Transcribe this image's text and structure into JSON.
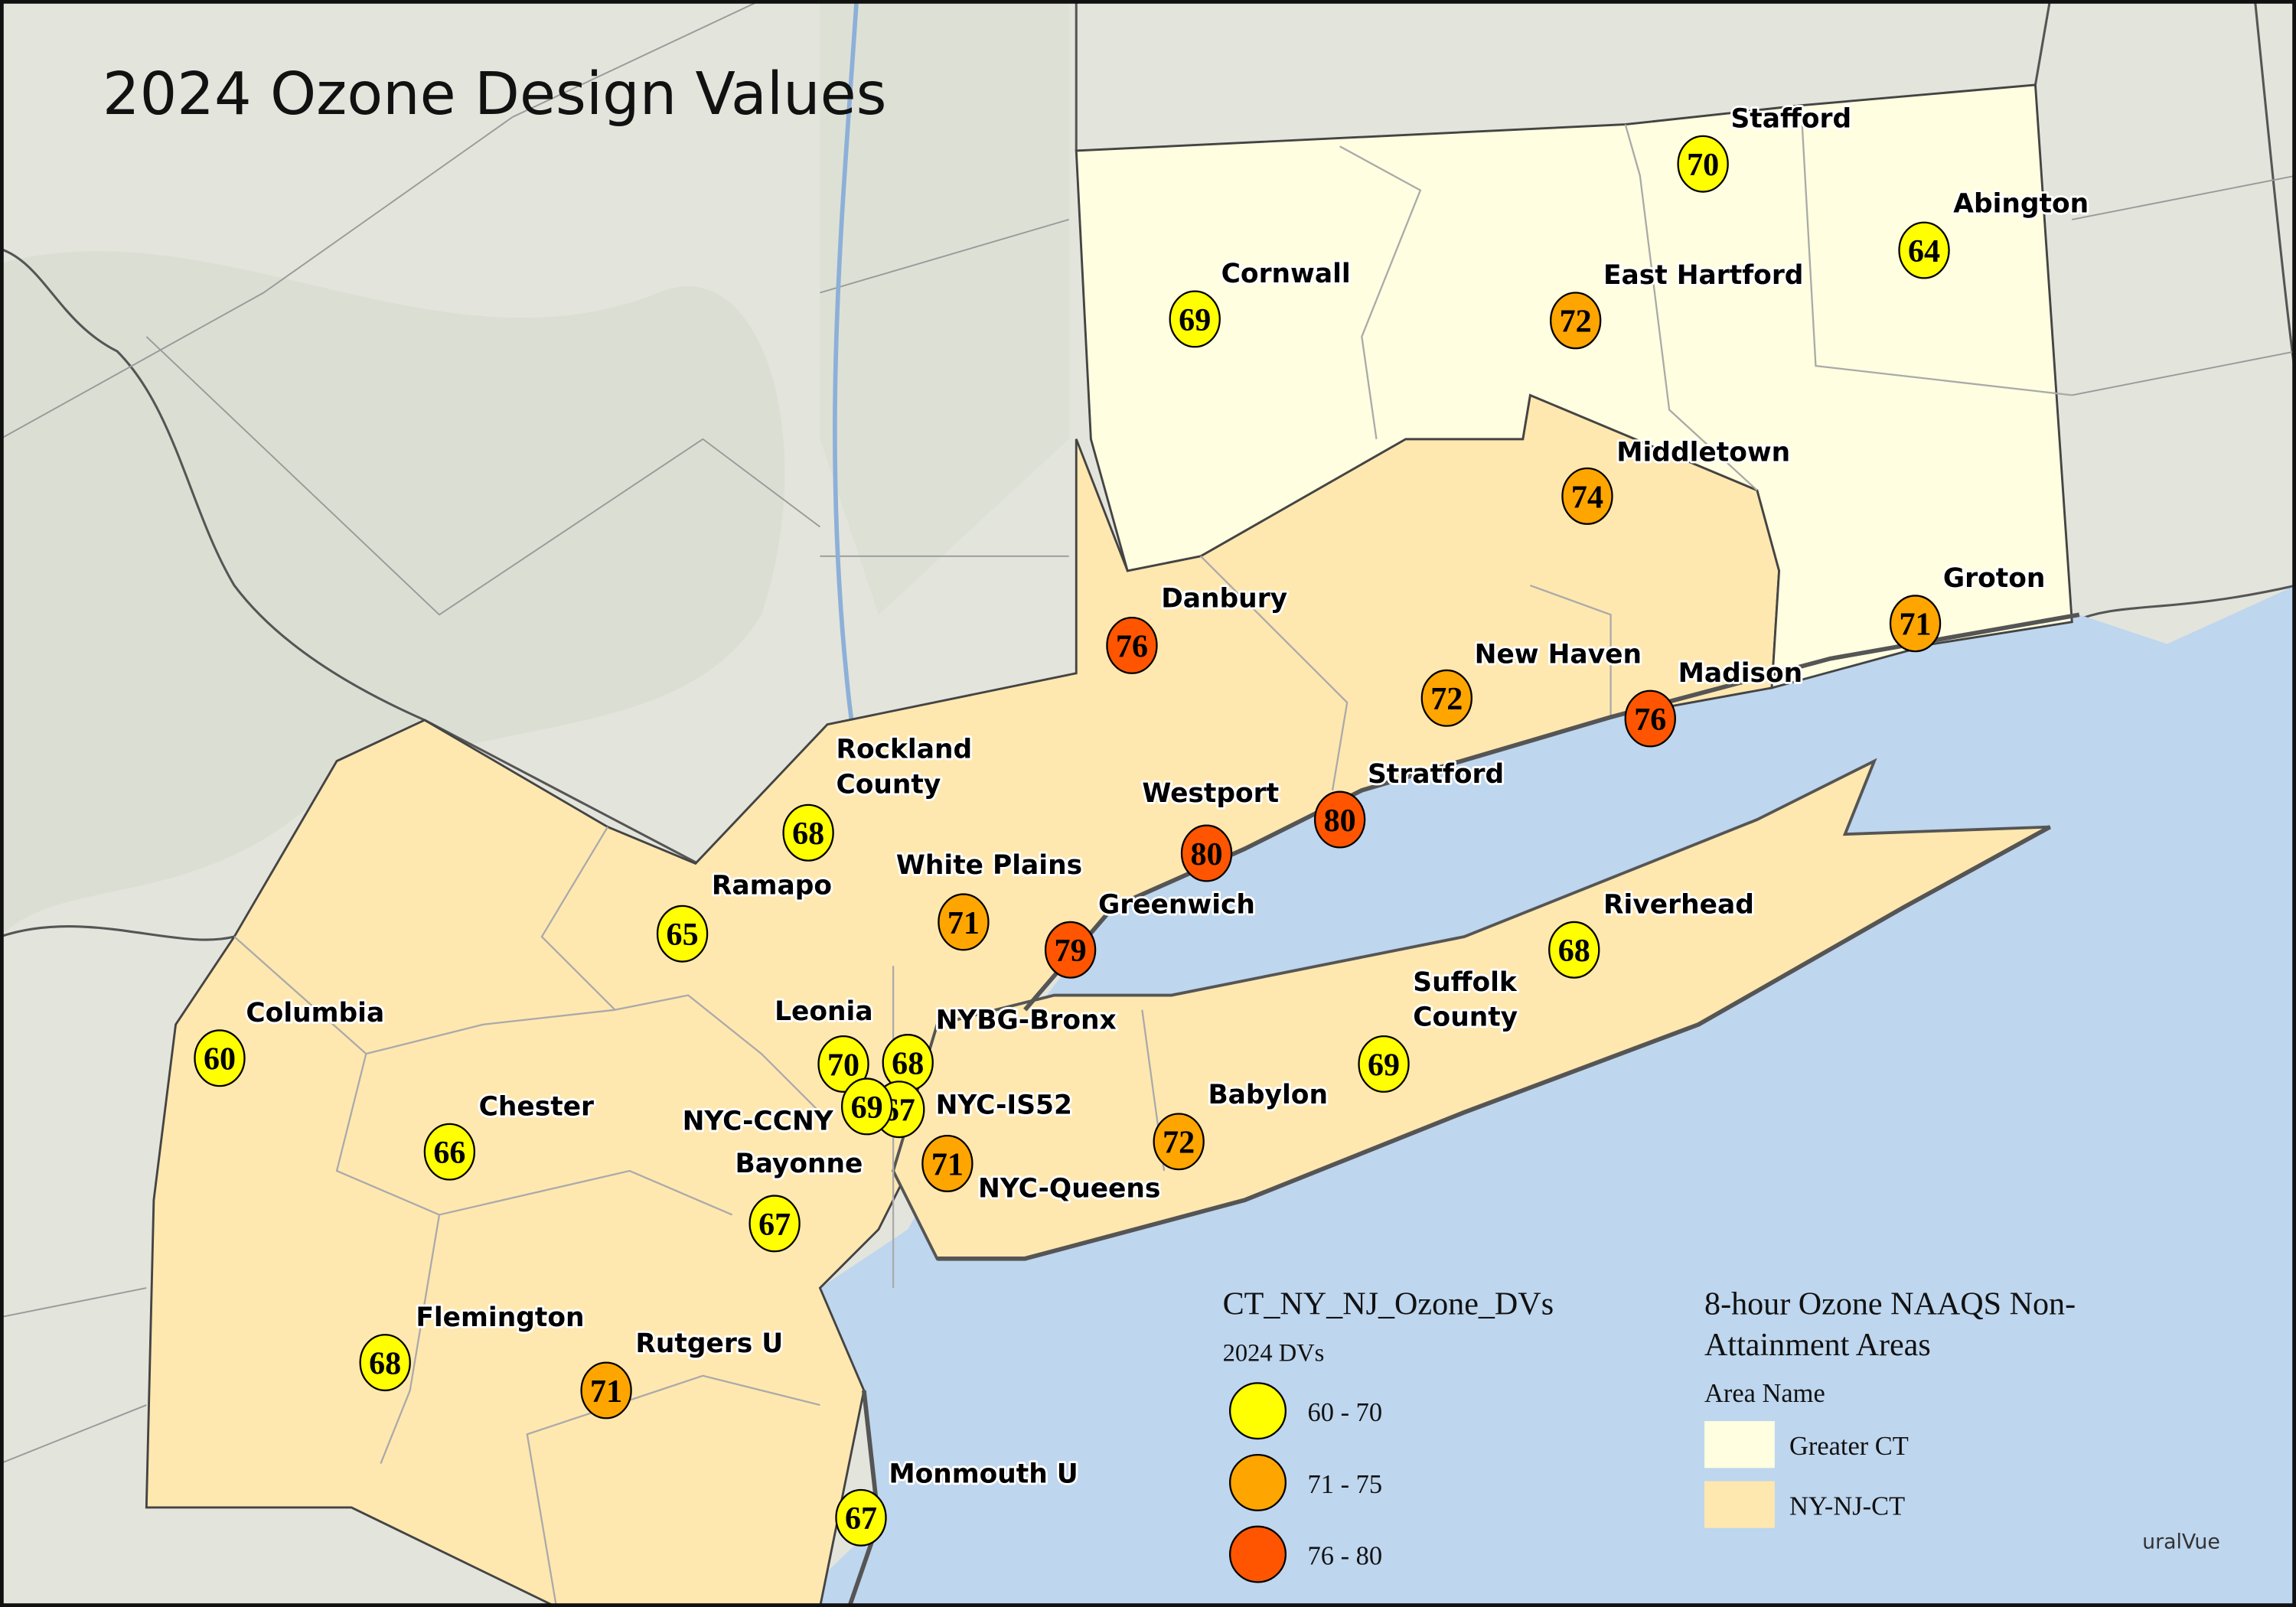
{
  "title": "2024 Ozone Design Values",
  "colors": {
    "low": "#FFFF00",
    "mid": "#FFA500",
    "high": "#FF5500",
    "greater_ct": "#FFFEE0",
    "ny_nj_ct": "#FFE8B0",
    "water": "#BED6EE",
    "land": "#E3E4DC"
  },
  "sites": [
    {
      "name": "Stafford",
      "value": "70",
      "class": "low"
    },
    {
      "name": "Abington",
      "value": "64",
      "class": "low"
    },
    {
      "name": "Cornwall",
      "value": "69",
      "class": "low"
    },
    {
      "name": "East Hartford",
      "value": "72",
      "class": "mid"
    },
    {
      "name": "Middletown",
      "value": "74",
      "class": "mid"
    },
    {
      "name": "Groton",
      "value": "71",
      "class": "mid"
    },
    {
      "name": "Danbury",
      "value": "76",
      "class": "high"
    },
    {
      "name": "New Haven",
      "value": "72",
      "class": "mid"
    },
    {
      "name": "Madison",
      "value": "76",
      "class": "high"
    },
    {
      "name": "Stratford",
      "value": "80",
      "class": "high"
    },
    {
      "name": "Westport",
      "value": "80",
      "class": "high"
    },
    {
      "name": "Rockland County",
      "value": "68",
      "class": "low"
    },
    {
      "name": "White Plains",
      "value": "71",
      "class": "mid"
    },
    {
      "name": "Greenwich",
      "value": "79",
      "class": "high"
    },
    {
      "name": "Ramapo",
      "value": "65",
      "class": "low"
    },
    {
      "name": "Riverhead",
      "value": "68",
      "class": "low"
    },
    {
      "name": "Suffolk County",
      "value": "69",
      "class": "low"
    },
    {
      "name": "Columbia",
      "value": "60",
      "class": "low"
    },
    {
      "name": "Leonia",
      "value": "70",
      "class": "low"
    },
    {
      "name": "NYBG-Bronx",
      "value": "68",
      "class": "low"
    },
    {
      "name": "NYC-IS52",
      "value": "67",
      "class": "low"
    },
    {
      "name": "NYC-CCNY",
      "value": "69",
      "class": "low"
    },
    {
      "name": "Chester",
      "value": "66",
      "class": "low"
    },
    {
      "name": "Babylon",
      "value": "72",
      "class": "mid"
    },
    {
      "name": "NYC-Queens",
      "value": "71",
      "class": "mid"
    },
    {
      "name": "Bayonne",
      "value": "67",
      "class": "low"
    },
    {
      "name": "Flemington",
      "value": "68",
      "class": "low"
    },
    {
      "name": "Rutgers U",
      "value": "71",
      "class": "mid"
    },
    {
      "name": "Monmouth U",
      "value": "67",
      "class": "low"
    }
  ],
  "legend": {
    "dv_title": "CT_NY_NJ_Ozone_DVs",
    "dv_subtitle": "2024 DVs",
    "dv_classes": [
      {
        "label": "60 - 70",
        "class": "low"
      },
      {
        "label": "71 - 75",
        "class": "mid"
      },
      {
        "label": "76 - 80",
        "class": "high"
      }
    ],
    "area_title_line1": "8-hour Ozone NAAQS Non-",
    "area_title_line2": "Attainment Areas",
    "area_subtitle": "Area Name",
    "areas": [
      {
        "label": "Greater CT",
        "class": "greater_ct"
      },
      {
        "label": "NY-NJ-CT",
        "class": "ny_nj_ct"
      }
    ]
  },
  "attribution": "uralVue"
}
